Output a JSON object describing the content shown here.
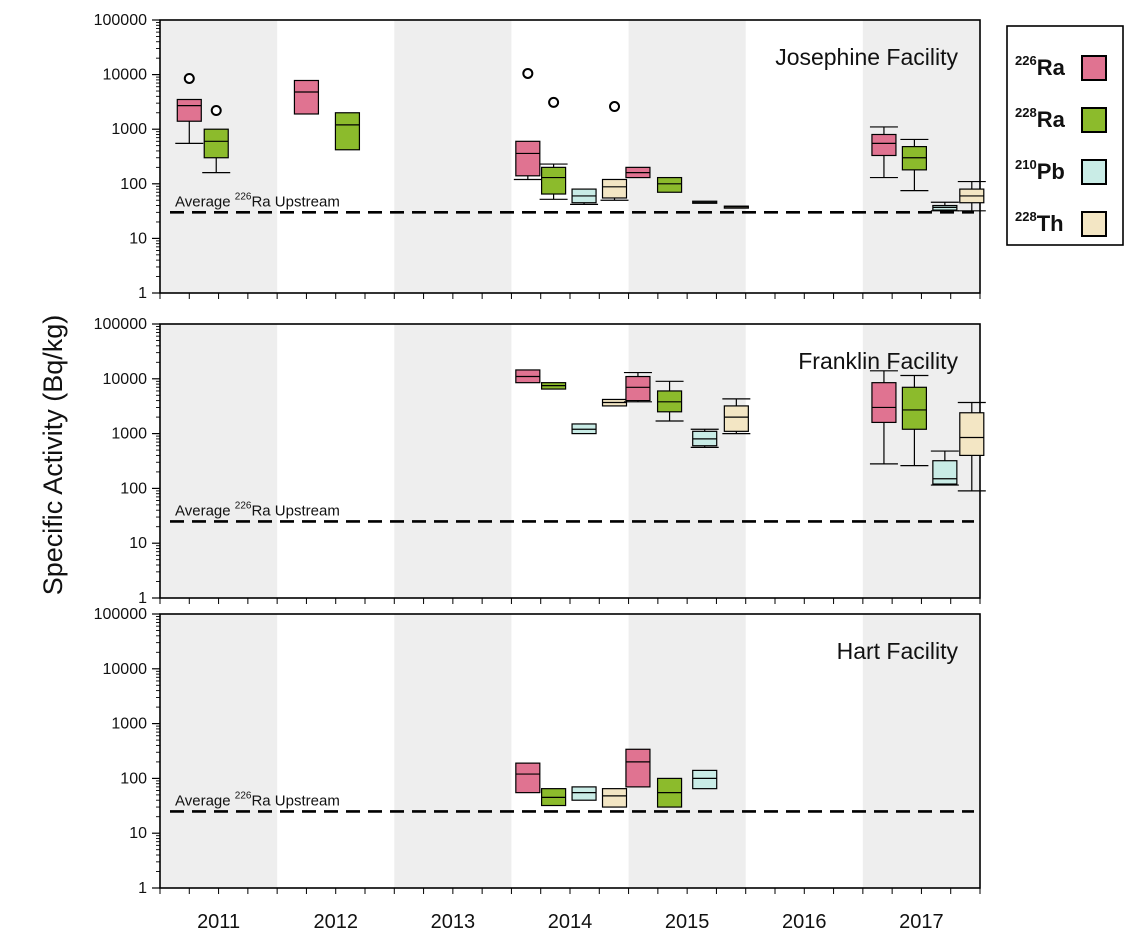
{
  "chart_data": {
    "type": "box",
    "ylabel": "Specific Activity (Bq/kg)",
    "yscale": "log",
    "ylim": [
      1,
      100000
    ],
    "yticks": [
      "1",
      "10",
      "100",
      "1000",
      "10000",
      "100000"
    ],
    "categories": [
      "2011",
      "2012",
      "2013",
      "2014",
      "2015",
      "2016",
      "2017"
    ],
    "shaded_years": [
      "2011",
      "2013",
      "2015",
      "2017"
    ],
    "legend_position": "top-right",
    "legend": [
      {
        "iso": "226",
        "el": "Ra",
        "color": "#e07391"
      },
      {
        "iso": "228",
        "el": "Ra",
        "color": "#8cbb2c"
      },
      {
        "iso": "210",
        "el": "Pb",
        "color": "#c9ece6"
      },
      {
        "iso": "228",
        "el": "Th",
        "color": "#f3e6c4"
      }
    ],
    "avg_label": {
      "pre": "Average ",
      "sup": "226",
      "post": "Ra Upstream"
    },
    "panels": [
      {
        "title": "Josephine Facility",
        "avg_upstream": 30,
        "boxes": [
          {
            "year": "2011",
            "species": 0,
            "offset": 0.25,
            "whislo": 550,
            "q1": 1400,
            "med": 2700,
            "q3": 3500,
            "whishi": 3500
          },
          {
            "year": "2011",
            "species": 1,
            "offset": 0.48,
            "whislo": 160,
            "q1": 300,
            "med": 600,
            "q3": 1000,
            "whishi": 1000
          },
          {
            "year": "2012",
            "species": 0,
            "offset": 0.25,
            "whislo": 1900,
            "q1": 1900,
            "med": 4800,
            "q3": 7800,
            "whishi": 7800
          },
          {
            "year": "2012",
            "species": 1,
            "offset": 0.6,
            "whislo": 420,
            "q1": 420,
            "med": 1200,
            "q3": 2000,
            "whishi": 2000
          },
          {
            "year": "2014",
            "species": 0,
            "offset": 0.14,
            "whislo": 120,
            "q1": 140,
            "med": 360,
            "q3": 600,
            "whishi": 600
          },
          {
            "year": "2014",
            "species": 1,
            "offset": 0.36,
            "whislo": 52,
            "q1": 65,
            "med": 130,
            "q3": 200,
            "whishi": 230
          },
          {
            "year": "2014",
            "species": 2,
            "offset": 0.62,
            "whislo": 42,
            "q1": 45,
            "med": 60,
            "q3": 80,
            "whishi": 80
          },
          {
            "year": "2014",
            "species": 3,
            "offset": 0.88,
            "whislo": 50,
            "q1": 55,
            "med": 88,
            "q3": 120,
            "whishi": 120
          },
          {
            "year": "2015",
            "species": 0,
            "offset": 0.08,
            "whislo": 130,
            "q1": 130,
            "med": 160,
            "q3": 200,
            "whishi": 200
          },
          {
            "year": "2015",
            "species": 1,
            "offset": 0.35,
            "whislo": 70,
            "q1": 70,
            "med": 100,
            "q3": 130,
            "whishi": 130
          },
          {
            "year": "2015",
            "species": 2,
            "offset": 0.65,
            "whislo": 44,
            "q1": 44,
            "med": 46,
            "q3": 48,
            "whishi": 48
          },
          {
            "year": "2015",
            "species": 3,
            "offset": 0.92,
            "whislo": 37,
            "q1": 37,
            "med": 38,
            "q3": 39,
            "whishi": 39
          },
          {
            "year": "2017",
            "species": 0,
            "offset": 0.18,
            "whislo": 130,
            "q1": 330,
            "med": 550,
            "q3": 800,
            "whishi": 1100
          },
          {
            "year": "2017",
            "species": 1,
            "offset": 0.44,
            "whislo": 75,
            "q1": 180,
            "med": 300,
            "q3": 480,
            "whishi": 650
          },
          {
            "year": "2017",
            "species": 2,
            "offset": 0.7,
            "whislo": 32,
            "q1": 33,
            "med": 37,
            "q3": 40,
            "whishi": 46
          },
          {
            "year": "2017",
            "species": 3,
            "offset": 0.93,
            "whislo": 32,
            "q1": 45,
            "med": 60,
            "q3": 80,
            "whishi": 110
          }
        ],
        "outliers": [
          {
            "year": "2011",
            "offset": 0.25,
            "value": 8500
          },
          {
            "year": "2011",
            "offset": 0.48,
            "value": 2200
          },
          {
            "year": "2014",
            "offset": 0.14,
            "value": 10500
          },
          {
            "year": "2014",
            "offset": 0.36,
            "value": 3100
          },
          {
            "year": "2014",
            "offset": 0.88,
            "value": 2600
          }
        ]
      },
      {
        "title": "Franklin Facility",
        "avg_upstream": 25,
        "boxes": [
          {
            "year": "2014",
            "species": 0,
            "offset": 0.14,
            "whislo": 8500,
            "q1": 8500,
            "med": 11000,
            "q3": 14500,
            "whishi": 14500
          },
          {
            "year": "2014",
            "species": 1,
            "offset": 0.36,
            "whislo": 6500,
            "q1": 6500,
            "med": 7500,
            "q3": 8500,
            "whishi": 8500
          },
          {
            "year": "2014",
            "species": 2,
            "offset": 0.62,
            "whislo": 1000,
            "q1": 1000,
            "med": 1200,
            "q3": 1500,
            "whishi": 1500
          },
          {
            "year": "2014",
            "species": 3,
            "offset": 0.88,
            "whislo": 3200,
            "q1": 3200,
            "med": 3700,
            "q3": 4200,
            "whishi": 4200
          },
          {
            "year": "2015",
            "species": 0,
            "offset": 0.08,
            "whislo": 3800,
            "q1": 4000,
            "med": 7000,
            "q3": 11000,
            "whishi": 13000
          },
          {
            "year": "2015",
            "species": 1,
            "offset": 0.35,
            "whislo": 1700,
            "q1": 2500,
            "med": 3800,
            "q3": 6000,
            "whishi": 9000
          },
          {
            "year": "2015",
            "species": 2,
            "offset": 0.65,
            "whislo": 560,
            "q1": 600,
            "med": 800,
            "q3": 1100,
            "whishi": 1200
          },
          {
            "year": "2015",
            "species": 3,
            "offset": 0.92,
            "whislo": 1000,
            "q1": 1100,
            "med": 2000,
            "q3": 3200,
            "whishi": 4300
          }
        ],
        "boxes_2017": [
          {
            "year": "2017",
            "species": 0,
            "offset": 0.18,
            "whislo": 280,
            "q1": 1600,
            "med": 3000,
            "q3": 8500,
            "whishi": 14000
          },
          {
            "year": "2017",
            "species": 1,
            "offset": 0.44,
            "whislo": 260,
            "q1": 1200,
            "med": 2700,
            "q3": 7000,
            "whishi": 11500
          },
          {
            "year": "2017",
            "species": 2,
            "offset": 0.7,
            "whislo": 115,
            "q1": 120,
            "med": 150,
            "q3": 320,
            "whishi": 480
          },
          {
            "year": "2017",
            "species": 3,
            "offset": 0.93,
            "whislo": 90,
            "q1": 400,
            "med": 850,
            "q3": 2400,
            "whishi": 3700
          }
        ],
        "outliers": []
      },
      {
        "title": "Hart Facility",
        "avg_upstream": 25,
        "boxes": [
          {
            "year": "2014",
            "species": 0,
            "offset": 0.14,
            "whislo": 55,
            "q1": 55,
            "med": 120,
            "q3": 190,
            "whishi": 190
          },
          {
            "year": "2014",
            "species": 1,
            "offset": 0.36,
            "whislo": 32,
            "q1": 32,
            "med": 45,
            "q3": 65,
            "whishi": 65
          },
          {
            "year": "2014",
            "species": 2,
            "offset": 0.62,
            "whislo": 40,
            "q1": 40,
            "med": 55,
            "q3": 70,
            "whishi": 70
          },
          {
            "year": "2014",
            "species": 3,
            "offset": 0.88,
            "whislo": 30,
            "q1": 30,
            "med": 48,
            "q3": 65,
            "whishi": 65
          },
          {
            "year": "2015",
            "species": 0,
            "offset": 0.08,
            "whislo": 70,
            "q1": 70,
            "med": 200,
            "q3": 340,
            "whishi": 340
          },
          {
            "year": "2015",
            "species": 1,
            "offset": 0.35,
            "whislo": 30,
            "q1": 30,
            "med": 55,
            "q3": 100,
            "whishi": 100
          },
          {
            "year": "2015",
            "species": 2,
            "offset": 0.65,
            "whislo": 65,
            "q1": 65,
            "med": 100,
            "q3": 140,
            "whishi": 140
          }
        ],
        "outliers": []
      }
    ]
  }
}
